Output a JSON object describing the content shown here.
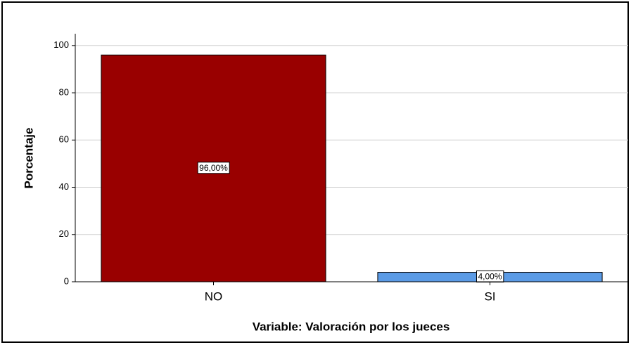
{
  "chart_data": {
    "type": "bar",
    "categories": [
      "NO",
      "SI"
    ],
    "values": [
      96,
      4
    ],
    "value_labels": [
      "96,00%",
      "4,00%"
    ],
    "colors": [
      "#990000",
      "#5b9be6"
    ],
    "ylim": [
      0,
      105
    ],
    "yticks": [
      0,
      20,
      40,
      60,
      80,
      100
    ],
    "grid": true,
    "xlabel": "Variable: Valoración por los jueces",
    "ylabel": "Porcentaje"
  }
}
